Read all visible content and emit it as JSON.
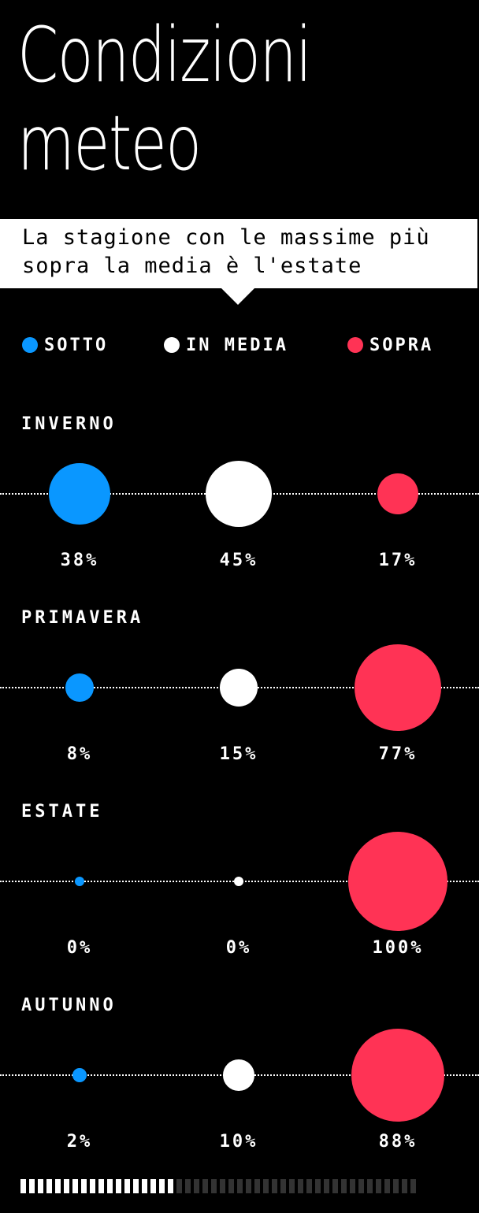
{
  "title": {
    "line1": "Condizioni",
    "line2": "meteo"
  },
  "subtitle": "La stagione con le massime più sopra la media è l'estate",
  "colors": {
    "sotto": "#0a97ff",
    "in_media": "#ffffff",
    "sopra": "#ff3355",
    "background": "#000000"
  },
  "legend": [
    {
      "label": "SOTTO",
      "color": "#0a97ff"
    },
    {
      "label": "IN MEDIA",
      "color": "#ffffff"
    },
    {
      "label": "SOPRA",
      "color": "#ff3355"
    }
  ],
  "chart_data": {
    "type": "scatter",
    "title": "Condizioni meteo",
    "subtitle": "La stagione con le massime più sopra la media è l'estate",
    "categories": [
      "SOTTO",
      "IN MEDIA",
      "SOPRA"
    ],
    "series": [
      {
        "name": "INVERNO",
        "values": [
          38,
          45,
          17
        ],
        "labels": [
          "38%",
          "45%",
          "17%"
        ]
      },
      {
        "name": "PRIMAVERA",
        "values": [
          8,
          15,
          77
        ],
        "labels": [
          "8%",
          "15%",
          "77%"
        ]
      },
      {
        "name": "ESTATE",
        "values": [
          0,
          0,
          100
        ],
        "labels": [
          "0%",
          "0%",
          "100%"
        ]
      },
      {
        "name": "AUTUNNO",
        "values": [
          2,
          10,
          88
        ],
        "labels": [
          "2%",
          "10%",
          "88%"
        ]
      }
    ]
  },
  "progress": {
    "total_segments": 46,
    "filled_segments": 18
  }
}
